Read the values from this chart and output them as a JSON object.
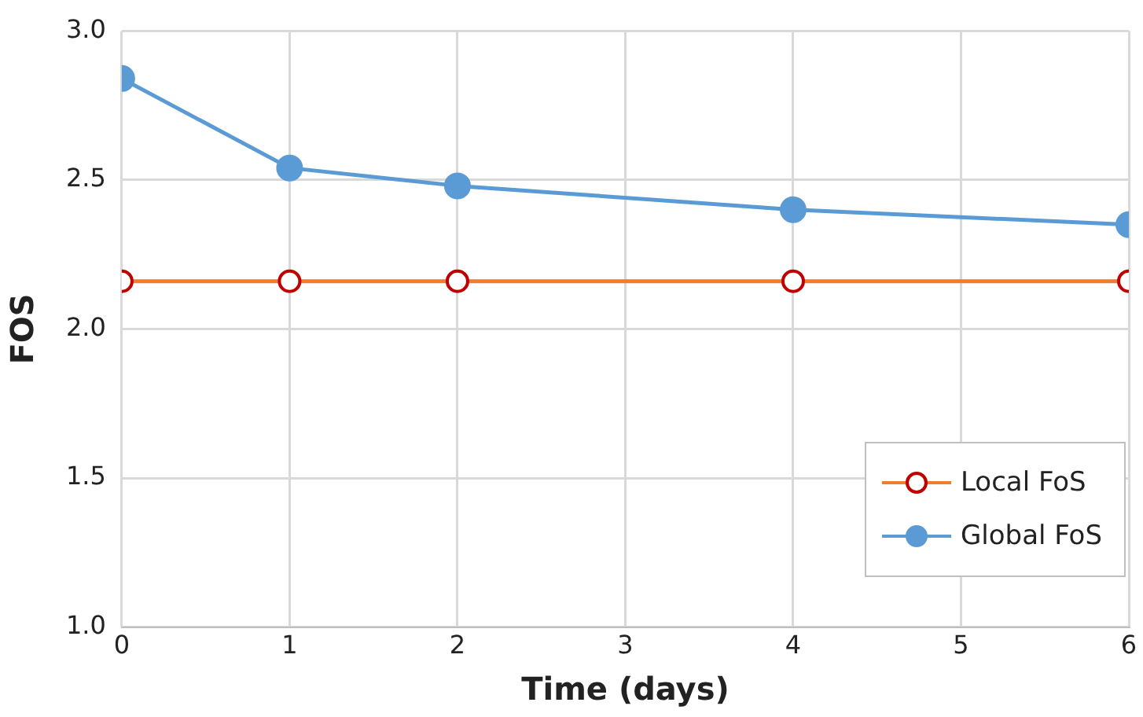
{
  "chart_data": {
    "type": "line",
    "xlabel": "Time (days)",
    "ylabel": "FOS",
    "x": [
      0,
      1,
      2,
      4,
      6
    ],
    "series": [
      {
        "name": "Local FoS",
        "color": "#ed7d31",
        "colors": [
          "#c00000",
          "#c00000",
          "#c00000",
          "#c00000",
          "#c00000"
        ],
        "values": [
          2.16,
          2.16,
          2.16,
          2.16,
          2.16
        ],
        "marker": "circle_open"
      },
      {
        "name": "Global FoS",
        "color": "#5b9bd5",
        "values": [
          2.84,
          2.54,
          2.48,
          2.4,
          2.35
        ],
        "marker": "circle"
      }
    ],
    "xlim": [
      0,
      6
    ],
    "xticks": [
      0,
      1,
      2,
      3,
      4,
      5,
      6
    ],
    "ylim": [
      1,
      3
    ],
    "yticks": [
      {
        "value": 1,
        "label": "1.0"
      },
      {
        "value": 1.5,
        "label": "1.5"
      },
      {
        "value": 2,
        "label": "2.0"
      },
      {
        "value": 2.5,
        "label": "2.5"
      },
      {
        "value": 3,
        "label": "3.0"
      }
    ],
    "grid": true,
    "legend": "bottom right"
  }
}
